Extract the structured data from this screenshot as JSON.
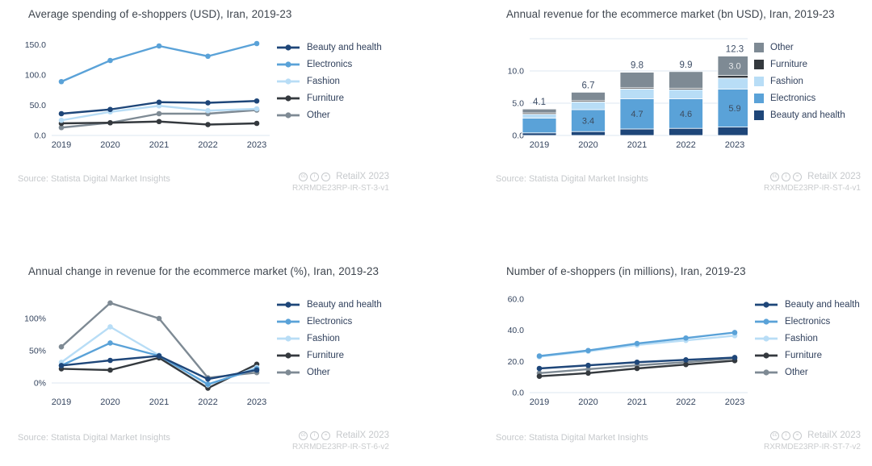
{
  "page": {
    "background": "#ffffff"
  },
  "chart_data": [
    {
      "type": "line",
      "title": "Average spending of e-shoppers (USD), Iran, 2019-23",
      "categories": [
        "2019",
        "2020",
        "2021",
        "2022",
        "2023"
      ],
      "ymin": 0,
      "ymax": 160,
      "gridlines": [
        0
      ],
      "yticks": [
        {
          "value": 0,
          "label": "0.0"
        },
        {
          "value": 50,
          "label": "50.0"
        },
        {
          "value": 100,
          "label": "100.0"
        },
        {
          "value": 150,
          "label": "150.0"
        }
      ],
      "legend_position": "right",
      "series": [
        {
          "name": "Beauty and health",
          "color": "#1e4679",
          "values": [
            36,
            43,
            55,
            54,
            57
          ]
        },
        {
          "name": "Electronics",
          "color": "#5aa2d8",
          "values": [
            89,
            124,
            148,
            131,
            152
          ]
        },
        {
          "name": "Fashion",
          "color": "#b8ddf6",
          "values": [
            25,
            39,
            49,
            41,
            44
          ]
        },
        {
          "name": "Furniture",
          "color": "#34393e",
          "values": [
            20,
            21,
            23,
            18,
            20
          ]
        },
        {
          "name": "Other",
          "color": "#7e8a94",
          "values": [
            13,
            21,
            36,
            36,
            42
          ]
        }
      ],
      "source": "Source: Statista Digital Market Insights",
      "badge": {
        "icons": [
          "cc",
          "i",
          "="
        ],
        "brand": "RetailX 2023",
        "code": "RXRMDE23RP-IR-ST-3-v1"
      }
    },
    {
      "type": "bar",
      "title": "Annual revenue for the ecommerce market (bn USD), Iran, 2019-23",
      "categories": [
        "2019",
        "2020",
        "2021",
        "2022",
        "2023"
      ],
      "ymin": 0,
      "ymax": 15,
      "gridlines": [
        0,
        5,
        10,
        15
      ],
      "yticks": [
        {
          "value": 0,
          "label": "0.0"
        },
        {
          "value": 5,
          "label": "5.0"
        },
        {
          "value": 10,
          "label": "10.0"
        }
      ],
      "legend_position": "right",
      "total_labels": [
        "4.1",
        "6.7",
        "9.8",
        "9.9",
        "12.3"
      ],
      "series": [
        {
          "name": "Beauty and health",
          "color": "#1e4679",
          "values": [
            0.4,
            0.6,
            1.0,
            1.1,
            1.3
          ],
          "labels": [
            null,
            null,
            null,
            null,
            null
          ]
        },
        {
          "name": "Electronics",
          "color": "#5aa2d8",
          "values": [
            2.3,
            3.4,
            4.7,
            4.6,
            5.9
          ],
          "labels": [
            null,
            "3.4",
            "4.7",
            "4.6",
            "5.9"
          ],
          "label_color": "#3c4b5e"
        },
        {
          "name": "Fashion",
          "color": "#b8ddf6",
          "values": [
            0.6,
            1.2,
            1.5,
            1.4,
            1.7
          ],
          "labels": [
            null,
            null,
            null,
            null,
            null
          ]
        },
        {
          "name": "Furniture",
          "color": "#34393e",
          "values": [
            0.2,
            0.2,
            0.2,
            0.2,
            0.4
          ],
          "labels": [
            null,
            null,
            null,
            null,
            null
          ]
        },
        {
          "name": "Other",
          "color": "#7e8a94",
          "values": [
            0.6,
            1.3,
            2.4,
            2.6,
            3.0
          ],
          "labels": [
            null,
            null,
            null,
            null,
            "3.0"
          ],
          "label_color": "#e7e9eb"
        }
      ],
      "source": "Source: Statista Digital Market Insights",
      "badge": {
        "icons": [
          "cc",
          "i",
          "="
        ],
        "brand": "RetailX 2023",
        "code": "RXRMDE23RP-IR-ST-4-v1"
      }
    },
    {
      "type": "line",
      "title": "Annual change in revenue for the ecommerce market (%), Iran, 2019-23",
      "categories": [
        "2019",
        "2020",
        "2021",
        "2022",
        "2023"
      ],
      "ymin": -15,
      "ymax": 135,
      "gridlines": [
        0
      ],
      "yticks": [
        {
          "value": 0,
          "label": "0%"
        },
        {
          "value": 50,
          "label": "50%"
        },
        {
          "value": 100,
          "label": "100%"
        }
      ],
      "legend_position": "right",
      "series": [
        {
          "name": "Beauty and health",
          "color": "#1e4679",
          "values": [
            27,
            35,
            42,
            6,
            20
          ]
        },
        {
          "name": "Electronics",
          "color": "#5aa2d8",
          "values": [
            27,
            62,
            42,
            -2,
            22
          ]
        },
        {
          "name": "Fashion",
          "color": "#b8ddf6",
          "values": [
            32,
            87,
            43,
            -3,
            24
          ]
        },
        {
          "name": "Furniture",
          "color": "#34393e",
          "values": [
            22,
            20,
            39,
            -8,
            29
          ]
        },
        {
          "name": "Other",
          "color": "#7e8a94",
          "values": [
            56,
            124,
            100,
            8,
            16
          ]
        }
      ],
      "source": "Source: Statista Digital Market Insights",
      "badge": {
        "icons": [
          "cc",
          "i",
          "="
        ],
        "brand": "RetailX 2023",
        "code": "RXRMDE23RP-IR-ST-6-v2"
      }
    },
    {
      "type": "line",
      "title": "Number of e-shoppers (in millions), Iran, 2019-23",
      "categories": [
        "2019",
        "2020",
        "2021",
        "2022",
        "2023"
      ],
      "ymin": 0,
      "ymax": 62,
      "gridlines": [
        0
      ],
      "yticks": [
        {
          "value": 0,
          "label": "0.0"
        },
        {
          "value": 20,
          "label": "20.0"
        },
        {
          "value": 40,
          "label": "40.0"
        },
        {
          "value": 60,
          "label": "60.0"
        }
      ],
      "legend_position": "right",
      "series": [
        {
          "name": "Beauty and health",
          "color": "#1e4679",
          "values": [
            15.5,
            17.5,
            19.5,
            21,
            22.5
          ]
        },
        {
          "name": "Electronics",
          "color": "#5aa2d8",
          "values": [
            23.5,
            27,
            31.5,
            35,
            38.5
          ]
        },
        {
          "name": "Fashion",
          "color": "#b8ddf6",
          "values": [
            23,
            26.5,
            30.5,
            33.5,
            36.5
          ]
        },
        {
          "name": "Furniture",
          "color": "#34393e",
          "values": [
            10.5,
            12.5,
            15.5,
            18,
            20.5
          ]
        },
        {
          "name": "Other",
          "color": "#7e8a94",
          "values": [
            12.5,
            15,
            17.5,
            19.5,
            22
          ]
        }
      ],
      "source": "Source: Statista Digital Market Insights",
      "badge": {
        "icons": [
          "cc",
          "i",
          "="
        ],
        "brand": "RetailX 2023",
        "code": "RXRMDE23RP-IR-ST-7-v2"
      }
    }
  ]
}
